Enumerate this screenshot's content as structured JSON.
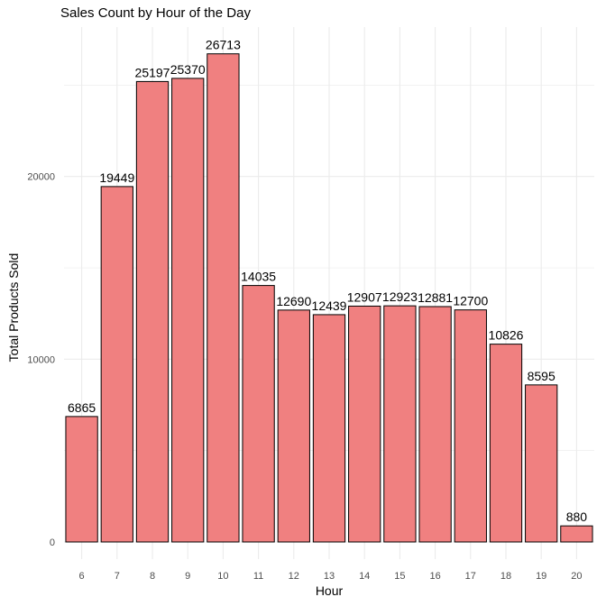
{
  "chart_data": {
    "type": "bar",
    "title": "Sales Count by Hour of the Day",
    "xlabel": "Hour",
    "ylabel": "Total Products Sold",
    "categories": [
      "6",
      "7",
      "8",
      "9",
      "10",
      "11",
      "12",
      "13",
      "14",
      "15",
      "16",
      "17",
      "18",
      "19",
      "20"
    ],
    "values": [
      6865,
      19449,
      25197,
      25370,
      26713,
      14035,
      12690,
      12439,
      12907,
      12923,
      12881,
      12700,
      10826,
      8595,
      880
    ],
    "data_labels": [
      "6865",
      "19449",
      "25197",
      "25370",
      "26713",
      "14035",
      "12690",
      "12439",
      "12907",
      "12923",
      "12881",
      "12700",
      "10826",
      "8595",
      "880"
    ],
    "y_ticks": [
      0,
      10000,
      20000
    ],
    "y_tick_labels": [
      "0",
      "10000",
      "20000"
    ],
    "ylim": [
      0,
      28000
    ],
    "grid": true,
    "legend": "none",
    "colors": {
      "bar_fill": "#F08080",
      "bar_stroke": "#000000",
      "grid": "#EBEBEB",
      "tick_text": "#4D4D4D"
    }
  }
}
